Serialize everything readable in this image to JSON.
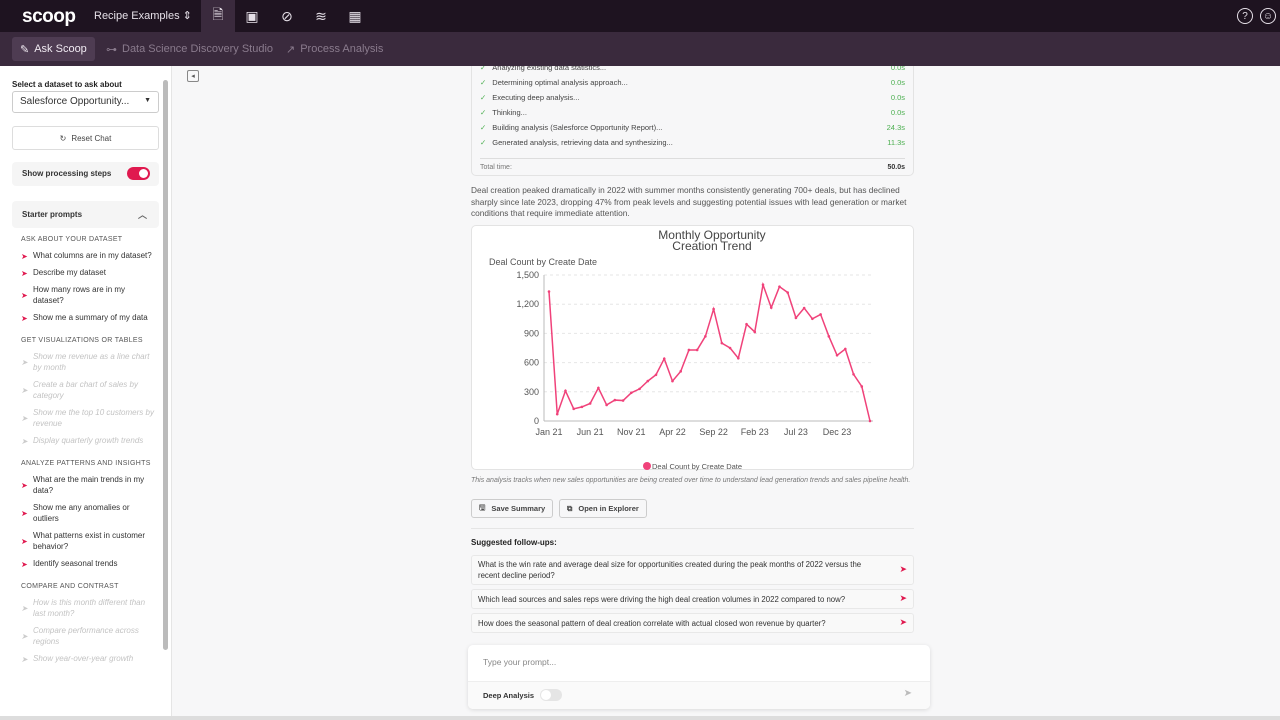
{
  "topbar": {
    "logo": "scoop",
    "project": "Recipe Examples",
    "project_caret": "⌃⌄",
    "tabs": [
      "document-search-icon",
      "presentation-icon",
      "compass-icon",
      "database-icon",
      "spreadsheet-icon"
    ],
    "help": "?",
    "user": "☺"
  },
  "subnav": {
    "items": [
      {
        "label": "Ask Scoop",
        "icon": "✎"
      },
      {
        "label": "Data Science Discovery Studio",
        "icon": "⊶"
      },
      {
        "label": "Process Analysis",
        "icon": "↗"
      }
    ]
  },
  "sidebar": {
    "dataset_label": "Select a dataset to ask about",
    "dataset_value": "Salesforce Opportunity...",
    "reset": "Reset Chat",
    "show_steps": "Show processing steps",
    "show_steps_on": true,
    "starter": "Starter prompts",
    "sections": [
      {
        "title": "ASK ABOUT YOUR DATASET",
        "disabled": false,
        "items": [
          "What columns are in my dataset?",
          "Describe my dataset",
          "How many rows are in my dataset?",
          "Show me a summary of my data"
        ]
      },
      {
        "title": "GET VISUALIZATIONS OR TABLES",
        "disabled": true,
        "items": [
          "Show me revenue as a line chart by month",
          "Create a bar chart of sales by category",
          "Show me the top 10 customers by revenue",
          "Display quarterly growth trends"
        ]
      },
      {
        "title": "ANALYZE PATTERNS AND INSIGHTS",
        "disabled": false,
        "items": [
          "What are the main trends in my data?",
          "Show me any anomalies or outliers",
          "What patterns exist in customer behavior?",
          "Identify seasonal trends"
        ]
      },
      {
        "title": "COMPARE AND CONTRAST",
        "disabled": true,
        "items": [
          "How is this month different than last month?",
          "Compare performance across regions",
          "Show year-over-year growth"
        ]
      }
    ]
  },
  "steps": {
    "items": [
      {
        "label": "Analyzing existing data statistics...",
        "time": "0.0s"
      },
      {
        "label": "Determining optimal analysis approach...",
        "time": "0.0s"
      },
      {
        "label": "Executing deep analysis...",
        "time": "0.0s"
      },
      {
        "label": "Thinking...",
        "time": "0.0s"
      },
      {
        "label": "Building analysis (Salesforce Opportunity Report)...",
        "time": "24.3s"
      },
      {
        "label": "Generated analysis, retrieving data and synthesizing...",
        "time": "11.3s"
      }
    ],
    "total_label": "Total time:",
    "total": "50.0s"
  },
  "summary": "Deal creation peaked dramatically in 2022 with summer months consistently generating 700+ deals, but has declined sharply since late 2023, dropping 47% from peak levels and suggesting potential issues with lead generation or market conditions that require immediate attention.",
  "chart_data": {
    "type": "line",
    "title": "Monthly Opportunity Creation Trend",
    "ylabel": "Deal Count by Create Date",
    "xlabel": "",
    "ylim": [
      0,
      1500
    ],
    "yticks": [
      "0",
      "300",
      "600",
      "900",
      "1,200",
      "1,500"
    ],
    "xticks": [
      "Jan 21",
      "Jun 21",
      "Nov 21",
      "Apr 22",
      "Sep 22",
      "Feb 23",
      "Jul 23",
      "Dec 23"
    ],
    "grid": true,
    "legend": "bottom",
    "color": "#f0427a",
    "x": [
      "Jan 21",
      "Feb 21",
      "Mar 21",
      "Apr 21",
      "May 21",
      "Jun 21",
      "Jul 21",
      "Aug 21",
      "Sep 21",
      "Oct 21",
      "Nov 21",
      "Dec 21",
      "Jan 22",
      "Feb 22",
      "Mar 22",
      "Apr 22",
      "May 22",
      "Jun 22",
      "Jul 22",
      "Aug 22",
      "Sep 22",
      "Oct 22",
      "Nov 22",
      "Dec 22",
      "Jan 23",
      "Feb 23",
      "Mar 23",
      "Apr 23",
      "May 23",
      "Jun 23",
      "Jul 23",
      "Aug 23",
      "Sep 23",
      "Oct 23",
      "Nov 23",
      "Dec 23",
      "Jan 24",
      "Feb 24",
      "Mar 24",
      "Apr 24"
    ],
    "series": [
      {
        "name": "Deal Count by Create Date",
        "values": [
          1330,
          70,
          310,
          125,
          145,
          180,
          340,
          165,
          215,
          210,
          290,
          330,
          410,
          475,
          640,
          410,
          510,
          730,
          730,
          870,
          1150,
          800,
          750,
          645,
          995,
          915,
          1400,
          1165,
          1380,
          1320,
          1060,
          1160,
          1050,
          1095,
          870,
          675,
          740,
          480,
          355,
          0
        ]
      }
    ]
  },
  "caption": "This analysis tracks when new sales opportunities are being created over time to understand lead generation trends and sales pipeline health.",
  "actions": {
    "save": "Save Summary",
    "open": "Open in Explorer"
  },
  "followups": {
    "title": "Suggested follow-ups:",
    "items": [
      "What is the win rate and average deal size for opportunities created during the peak months of 2022 versus the recent decline period?",
      "Which lead sources and sales reps were driving the high deal creation volumes in 2022 compared to now?",
      "How does the seasonal pattern of deal creation correlate with actual closed won revenue by quarter?"
    ]
  },
  "prompt": {
    "placeholder": "Type your prompt...",
    "deep": "Deep Analysis",
    "deep_on": false
  }
}
